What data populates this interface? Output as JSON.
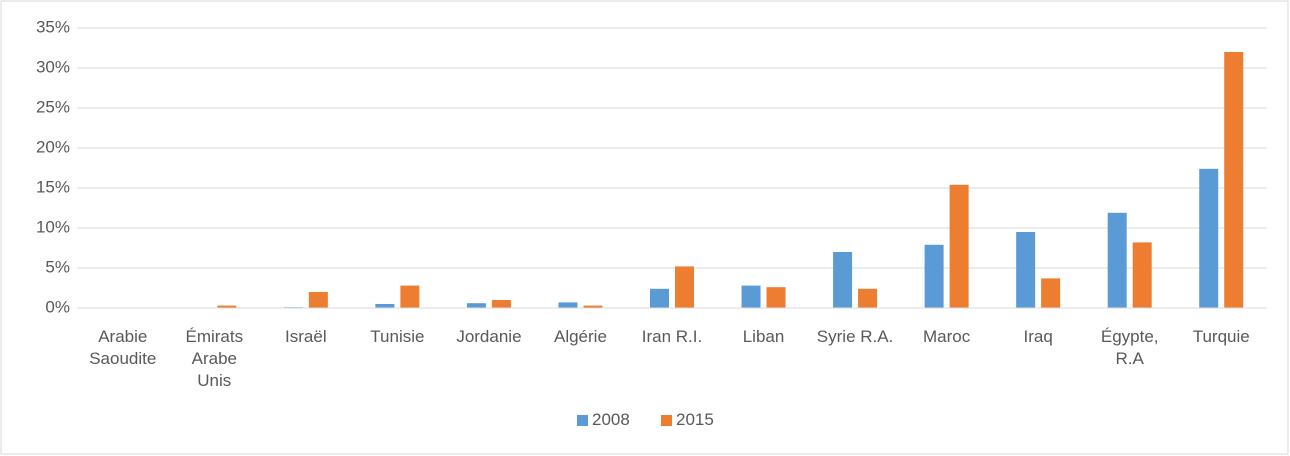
{
  "chart_data": {
    "type": "bar",
    "categories": [
      "Arabie Saoudite",
      "Émirats Arabe Unis",
      "Israël",
      "Tunisie",
      "Jordanie",
      "Algérie",
      "Iran R.I.",
      "Liban",
      "Syrie R.A.",
      "Maroc",
      "Iraq",
      "Égypte, R.A",
      "Turquie"
    ],
    "series": [
      {
        "name": "2008",
        "color": "#5b9bd5",
        "values": [
          0.05,
          0,
          0.1,
          0.5,
          0.6,
          0.7,
          2.4,
          2.8,
          7.0,
          7.9,
          9.5,
          11.9,
          17.4
        ]
      },
      {
        "name": "2015",
        "color": "#ed7d31",
        "values": [
          0.05,
          0.3,
          2.0,
          2.8,
          1.0,
          0.3,
          5.2,
          2.6,
          2.4,
          15.4,
          3.7,
          8.2,
          32.0
        ]
      }
    ],
    "ylim": [
      0,
      35
    ],
    "yticks": [
      {
        "value": 0,
        "label": "0%"
      },
      {
        "value": 5,
        "label": "5%"
      },
      {
        "value": 10,
        "label": "10%"
      },
      {
        "value": 15,
        "label": "15%"
      },
      {
        "value": 20,
        "label": "20%"
      },
      {
        "value": 25,
        "label": "25%"
      },
      {
        "value": 30,
        "label": "30%"
      },
      {
        "value": 35,
        "label": "35%"
      }
    ],
    "grid": true,
    "legend": "bottom"
  }
}
